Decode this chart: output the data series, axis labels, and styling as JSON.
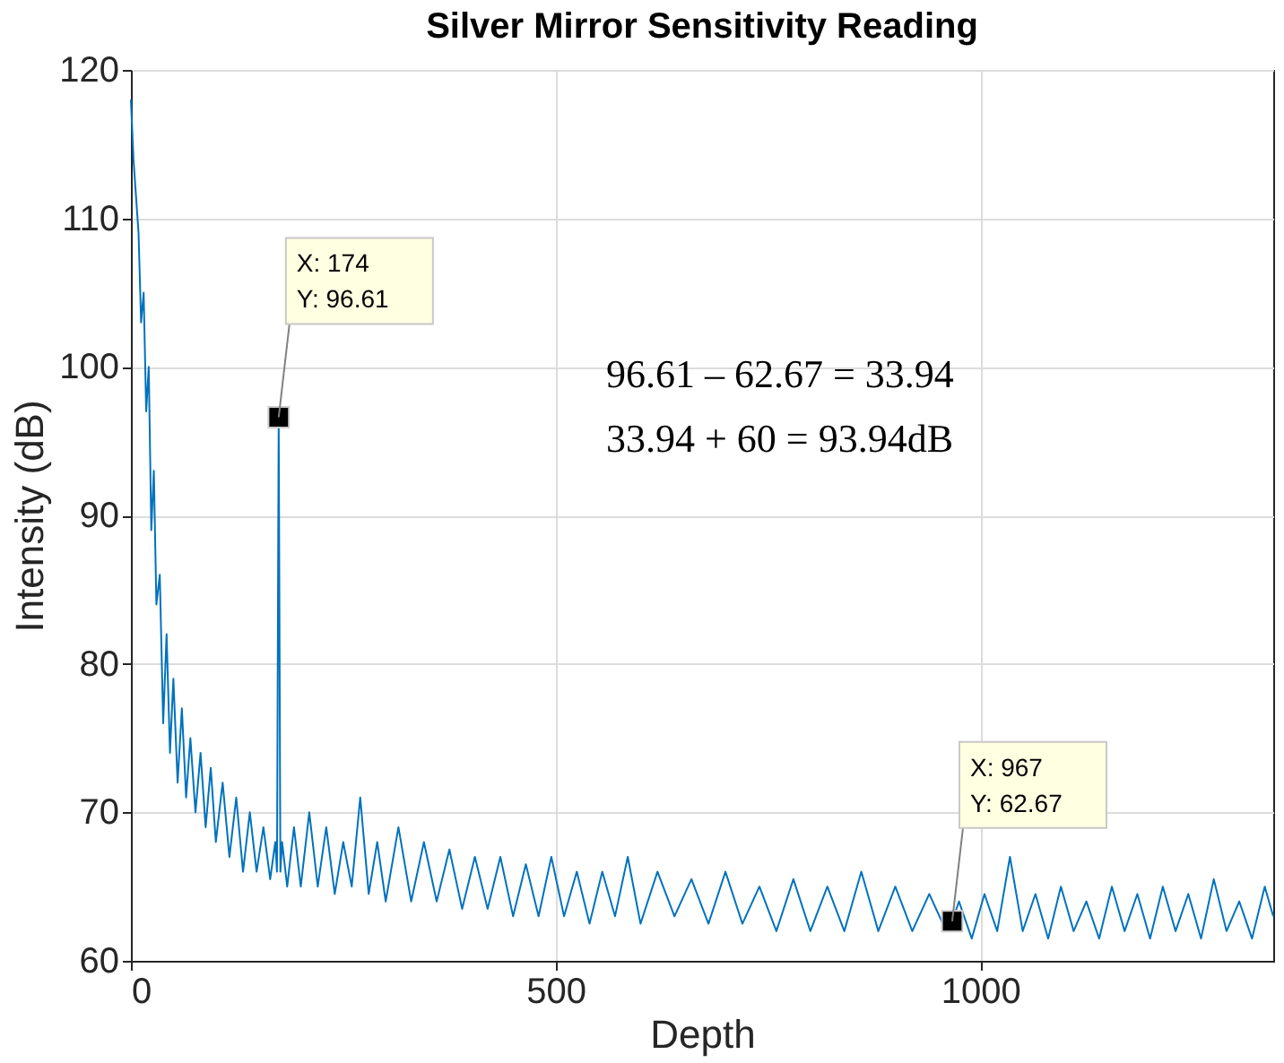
{
  "chart_data": {
    "type": "line",
    "title": "Silver Mirror Sensitivity Reading",
    "xlabel": "Depth",
    "ylabel": "Intensity (dB)",
    "xlim": [
      0,
      1345
    ],
    "xticks": [
      0,
      500,
      1000
    ],
    "ylim": [
      60,
      120
    ],
    "yticks": [
      60,
      70,
      80,
      90,
      100,
      110,
      120
    ],
    "grid": true,
    "line_style": "solid",
    "series": [
      {
        "color": "#0072bd",
        "x": [
          0,
          3,
          6,
          9,
          12,
          15,
          18,
          21,
          24,
          27,
          30,
          34,
          38,
          42,
          46,
          50,
          55,
          60,
          65,
          70,
          76,
          82,
          88,
          94,
          100,
          108,
          116,
          124,
          132,
          140,
          148,
          156,
          164,
          170,
          172,
          174,
          176,
          178,
          184,
          192,
          200,
          210,
          220,
          230,
          240,
          250,
          260,
          270,
          280,
          290,
          300,
          315,
          330,
          345,
          360,
          375,
          390,
          405,
          420,
          435,
          450,
          465,
          480,
          495,
          510,
          525,
          540,
          555,
          570,
          585,
          600,
          620,
          640,
          660,
          680,
          700,
          720,
          740,
          760,
          780,
          800,
          820,
          840,
          860,
          880,
          900,
          920,
          940,
          960,
          967,
          975,
          990,
          1005,
          1020,
          1035,
          1050,
          1065,
          1080,
          1095,
          1110,
          1125,
          1140,
          1155,
          1170,
          1185,
          1200,
          1215,
          1230,
          1245,
          1260,
          1275,
          1290,
          1305,
          1320,
          1335,
          1345
        ],
        "values": [
          118,
          114,
          111.5,
          109,
          103,
          105,
          97,
          100,
          89,
          93,
          84,
          86,
          76,
          82,
          74,
          79,
          72,
          77,
          71,
          75,
          70,
          74,
          69,
          73,
          68,
          72,
          67,
          71,
          66,
          70,
          66,
          69,
          65.5,
          68,
          66,
          96.61,
          66,
          68,
          65,
          69,
          65,
          70,
          65,
          69,
          64.5,
          68,
          65,
          71,
          64.5,
          68,
          64,
          69,
          64,
          68,
          64,
          67.5,
          63.5,
          67,
          63.5,
          67,
          63,
          66.5,
          63,
          67,
          63,
          66,
          62.5,
          66,
          63,
          67,
          62.5,
          66,
          63,
          65.5,
          62.5,
          66,
          62.5,
          65,
          62,
          65.5,
          62,
          65,
          62,
          66,
          62,
          65,
          62,
          64.5,
          62,
          62.67,
          64,
          61.5,
          64.5,
          62,
          67,
          62,
          64.5,
          61.5,
          65,
          62,
          64,
          61.5,
          65,
          62,
          64.5,
          61.5,
          65,
          62,
          64.5,
          61.5,
          65.5,
          62,
          64,
          61.5,
          65,
          63
        ]
      },
      {
        "type": "scatter",
        "color": "#000000",
        "marker": "square",
        "x": [
          174,
          967
        ],
        "values": [
          96.61,
          62.67
        ]
      }
    ],
    "annotations": [
      {
        "text": "X: 174\nY: 96.61",
        "x": 174,
        "y": 96.61
      },
      {
        "text": "X: 967\nY: 62.67",
        "x": 967,
        "y": 62.67
      },
      "96.61 – 62.67 = 33.94",
      "33.94 + 60 = 93.94dB"
    ]
  }
}
